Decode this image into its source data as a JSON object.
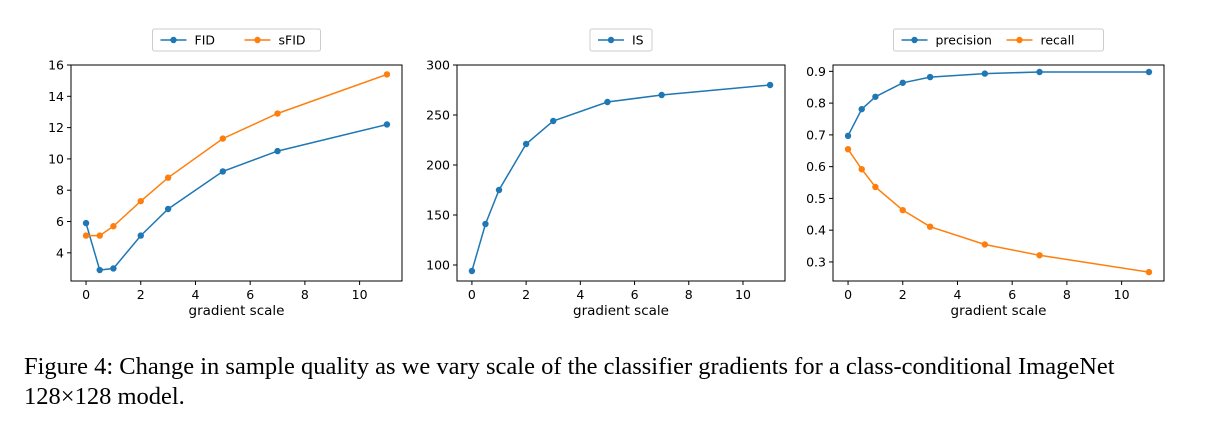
{
  "caption": "Figure 4: Change in sample quality as we vary scale of the classifier gradients for a class-conditional ImageNet 128×128 model.",
  "colors": {
    "blue": "#1f77b4",
    "orange": "#ff7f0e"
  },
  "chart_data": [
    {
      "type": "line",
      "xlabel": "gradient scale",
      "ylabel": "",
      "xlim": [
        -0.55,
        11.55
      ],
      "ylim": [
        2.2,
        16.0
      ],
      "xticks": [
        0,
        2,
        4,
        6,
        8,
        10
      ],
      "yticks": [
        4,
        6,
        8,
        10,
        12,
        14,
        16
      ],
      "legend": "top-center",
      "grid": false,
      "series": [
        {
          "name": "FID",
          "color": "#1f77b4",
          "x": [
            0,
            0.5,
            1,
            2,
            3,
            5,
            7,
            11
          ],
          "y": [
            5.9,
            2.9,
            3.0,
            5.1,
            6.8,
            9.2,
            10.5,
            12.2
          ]
        },
        {
          "name": "sFID",
          "color": "#ff7f0e",
          "x": [
            0,
            0.5,
            1,
            2,
            3,
            5,
            7,
            11
          ],
          "y": [
            5.1,
            5.1,
            5.7,
            7.3,
            8.8,
            11.3,
            12.9,
            15.4
          ]
        }
      ]
    },
    {
      "type": "line",
      "xlabel": "gradient scale",
      "ylabel": "",
      "xlim": [
        -0.55,
        11.55
      ],
      "ylim": [
        84,
        300
      ],
      "xticks": [
        0,
        2,
        4,
        6,
        8,
        10
      ],
      "yticks": [
        100,
        150,
        200,
        250,
        300
      ],
      "legend": "top-center",
      "grid": false,
      "series": [
        {
          "name": "IS",
          "color": "#1f77b4",
          "x": [
            0,
            0.5,
            1,
            2,
            3,
            5,
            7,
            11
          ],
          "y": [
            94,
            141,
            175,
            221,
            244,
            263,
            270,
            280
          ]
        }
      ]
    },
    {
      "type": "line",
      "xlabel": "gradient scale",
      "ylabel": "",
      "xlim": [
        -0.55,
        11.55
      ],
      "ylim": [
        0.24,
        0.92
      ],
      "xticks": [
        0,
        2,
        4,
        6,
        8,
        10
      ],
      "yticks": [
        0.3,
        0.4,
        0.5,
        0.6,
        0.7,
        0.8,
        0.9
      ],
      "legend": "top-center",
      "grid": false,
      "series": [
        {
          "name": "precision",
          "color": "#1f77b4",
          "x": [
            0,
            0.5,
            1,
            2,
            3,
            5,
            7,
            11
          ],
          "y": [
            0.697,
            0.781,
            0.82,
            0.864,
            0.882,
            0.893,
            0.898,
            0.898
          ]
        },
        {
          "name": "recall",
          "color": "#ff7f0e",
          "x": [
            0,
            0.5,
            1,
            2,
            3,
            5,
            7,
            11
          ],
          "y": [
            0.655,
            0.592,
            0.536,
            0.463,
            0.411,
            0.355,
            0.321,
            0.268
          ]
        }
      ]
    }
  ]
}
